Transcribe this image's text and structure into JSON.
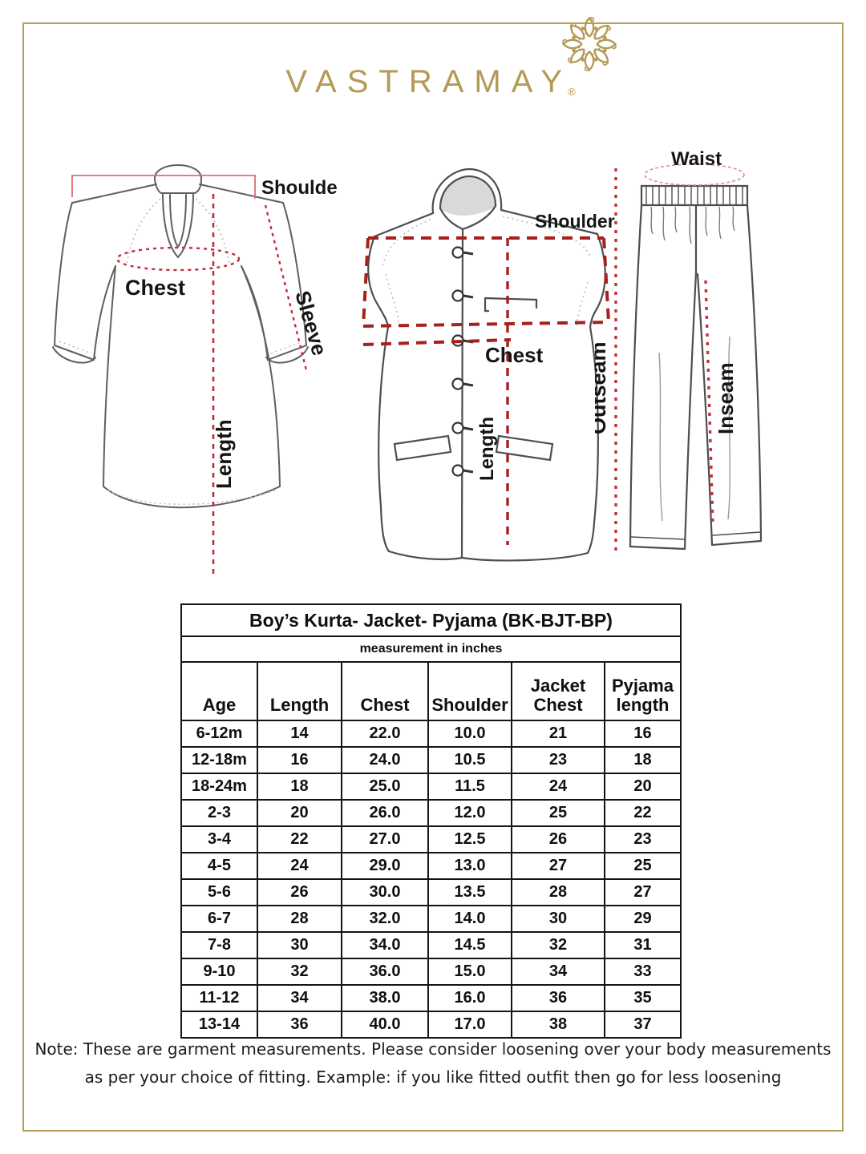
{
  "brand": {
    "name": "VASTRAMAY",
    "registered": "®"
  },
  "colors": {
    "gold": "#b49a55",
    "measure_red": "#c32c3c",
    "measure_dark_red": "#a8201d",
    "outline_gray": "#5f5f5f",
    "text": "#141414"
  },
  "diagrams": {
    "kurta": {
      "labels": {
        "shoulder": "Shoulder",
        "chest": "Chest",
        "sleeve": "Sleeve",
        "length": "Length"
      }
    },
    "jacket": {
      "labels": {
        "shoulder": "Shoulder",
        "chest": "Chest",
        "length": "Length"
      }
    },
    "pyjama": {
      "labels": {
        "waist": "Waist",
        "outseam": "Outseam",
        "inseam": "Inseam"
      }
    }
  },
  "size_chart": {
    "title": "Boy’s Kurta- Jacket- Pyjama (BK-BJT-BP)",
    "subtitle": "measurement in inches",
    "columns": [
      "Age",
      "Length",
      "Chest",
      "Shoulder",
      "Jacket Chest",
      "Pyjama length"
    ],
    "rows": [
      [
        "6-12m",
        "14",
        "22.0",
        "10.0",
        "21",
        "16"
      ],
      [
        "12-18m",
        "16",
        "24.0",
        "10.5",
        "23",
        "18"
      ],
      [
        "18-24m",
        "18",
        "25.0",
        "11.5",
        "24",
        "20"
      ],
      [
        "2-3",
        "20",
        "26.0",
        "12.0",
        "25",
        "22"
      ],
      [
        "3-4",
        "22",
        "27.0",
        "12.5",
        "26",
        "23"
      ],
      [
        "4-5",
        "24",
        "29.0",
        "13.0",
        "27",
        "25"
      ],
      [
        "5-6",
        "26",
        "30.0",
        "13.5",
        "28",
        "27"
      ],
      [
        "6-7",
        "28",
        "32.0",
        "14.0",
        "30",
        "29"
      ],
      [
        "7-8",
        "30",
        "34.0",
        "14.5",
        "32",
        "31"
      ],
      [
        "9-10",
        "32",
        "36.0",
        "15.0",
        "34",
        "33"
      ],
      [
        "11-12",
        "34",
        "38.0",
        "16.0",
        "36",
        "35"
      ],
      [
        "13-14",
        "36",
        "40.0",
        "17.0",
        "38",
        "37"
      ]
    ]
  },
  "note": {
    "lines": [
      "Note: These are garment measurements. Please consider loosening over your body measurements",
      "as per your choice of fitting. Example: if you like fitted outfit then go for less loosening"
    ]
  }
}
